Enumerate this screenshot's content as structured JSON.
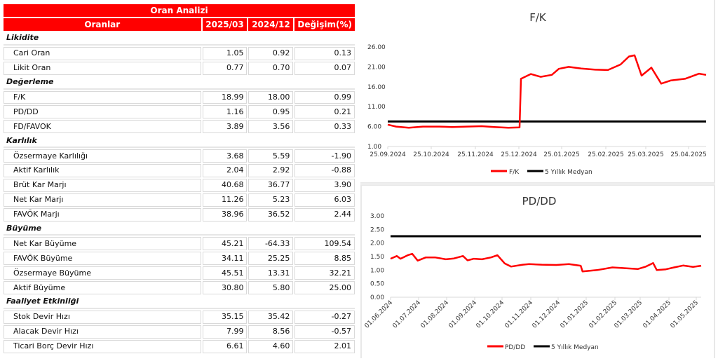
{
  "table": {
    "title": "Oran Analizi",
    "headers": [
      "Oranlar",
      "2025/03",
      "2024/12",
      "Değişim(%)"
    ],
    "sections": [
      {
        "name": "Likidite",
        "rows": [
          {
            "label": "Cari Oran",
            "v2025_03": "1.05",
            "v2024_12": "0.92",
            "change": "0.13"
          },
          {
            "label": "Likit Oran",
            "v2025_03": "0.77",
            "v2024_12": "0.70",
            "change": "0.07"
          }
        ]
      },
      {
        "name": "Değerleme",
        "rows": [
          {
            "label": "F/K",
            "v2025_03": "18.99",
            "v2024_12": "18.00",
            "change": "0.99"
          },
          {
            "label": "PD/DD",
            "v2025_03": "1.16",
            "v2024_12": "0.95",
            "change": "0.21"
          },
          {
            "label": "FD/FAVOK",
            "v2025_03": "3.89",
            "v2024_12": "3.56",
            "change": "0.33"
          }
        ]
      },
      {
        "name": "Karlılık",
        "rows": [
          {
            "label": "Özsermaye Karlılığı",
            "v2025_03": "3.68",
            "v2024_12": "5.59",
            "change": "-1.90"
          },
          {
            "label": "Aktif Karlılık",
            "v2025_03": "2.04",
            "v2024_12": "2.92",
            "change": "-0.88"
          },
          {
            "label": "Brüt Kar Marjı",
            "v2025_03": "40.68",
            "v2024_12": "36.77",
            "change": "3.90"
          },
          {
            "label": "Net Kar Marjı",
            "v2025_03": "11.26",
            "v2024_12": "5.23",
            "change": "6.03"
          },
          {
            "label": "FAVÖK Marjı",
            "v2025_03": "38.96",
            "v2024_12": "36.52",
            "change": "2.44"
          }
        ]
      },
      {
        "name": "Büyüme",
        "rows": [
          {
            "label": "Net Kar Büyüme",
            "v2025_03": "45.21",
            "v2024_12": "-64.33",
            "change": "109.54"
          },
          {
            "label": "FAVÖK Büyüme",
            "v2025_03": "34.11",
            "v2024_12": "25.25",
            "change": "8.85"
          },
          {
            "label": "Özsermaye Büyüme",
            "v2025_03": "45.51",
            "v2024_12": "13.31",
            "change": "32.21"
          },
          {
            "label": "Aktif Büyüme",
            "v2025_03": "30.80",
            "v2024_12": "5.80",
            "change": "25.00"
          }
        ]
      },
      {
        "name": "Faaliyet Etkinliği",
        "rows": [
          {
            "label": "Stok Devir Hızı",
            "v2025_03": "35.15",
            "v2024_12": "35.42",
            "change": "-0.27"
          },
          {
            "label": "Alacak Devir Hızı",
            "v2025_03": "7.99",
            "v2024_12": "8.56",
            "change": "-0.57"
          },
          {
            "label": "Ticari Borç Devir Hızı",
            "v2025_03": "6.61",
            "v2024_12": "4.60",
            "change": "2.01"
          }
        ]
      }
    ]
  },
  "colors": {
    "header_red": "#ff0000",
    "series_red": "#ff0000",
    "median_black": "#000000"
  },
  "chart_data": [
    {
      "type": "line",
      "title": "F/K",
      "xlabel": "",
      "ylabel": "",
      "ylim": [
        1,
        26
      ],
      "yticks": [
        "26.00",
        "21.00",
        "16.00",
        "11.00",
        "6.00",
        "1.00"
      ],
      "xticks": [
        "25.09.2024",
        "25.10.2024",
        "25.11.2024",
        "25.12.2024",
        "25.01.2025",
        "25.02.2025",
        "25.03.2025",
        "25.04.2025"
      ],
      "grid": false,
      "legend_position": "bottom",
      "legend": [
        "F/K",
        "5 Yıllık Medyan"
      ],
      "series": [
        {
          "name": "F/K",
          "color": "#ff0000",
          "x": [
            "25.09.2024",
            "01.10.2024",
            "10.10.2024",
            "20.10.2024",
            "01.11.2024",
            "10.11.2024",
            "20.11.2024",
            "01.12.2024",
            "10.12.2024",
            "20.12.2024",
            "28.12.2024",
            "29.12.2024",
            "05.01.2025",
            "12.01.2025",
            "20.01.2025",
            "25.01.2025",
            "01.02.2025",
            "10.02.2025",
            "20.02.2025",
            "01.03.2025",
            "10.03.2025",
            "16.03.2025",
            "20.03.2025",
            "25.03.2025",
            "01.04.2025",
            "08.04.2025",
            "15.04.2025",
            "25.04.2025",
            "05.05.2025",
            "10.05.2025"
          ],
          "values": [
            6.5,
            6.0,
            5.7,
            6.0,
            6.0,
            5.9,
            6.0,
            6.1,
            5.9,
            5.7,
            5.8,
            18.0,
            19.2,
            18.5,
            19.0,
            20.5,
            21.0,
            20.6,
            20.3,
            20.2,
            21.6,
            23.6,
            23.9,
            18.8,
            20.8,
            16.8,
            17.6,
            18.0,
            19.3,
            18.99
          ]
        },
        {
          "name": "5 Yıllık Medyan",
          "color": "#000000",
          "values_constant": 7.3
        }
      ]
    },
    {
      "type": "line",
      "title": "PD/DD",
      "xlabel": "",
      "ylabel": "",
      "ylim": [
        0,
        3
      ],
      "yticks": [
        "3.00",
        "2.50",
        "2.00",
        "1.50",
        "1.00",
        "0.50",
        "0.00"
      ],
      "xticks": [
        "01.06.2024",
        "01.07.2024",
        "01.08.2024",
        "01.09.2024",
        "01.10.2024",
        "01.11.2024",
        "01.12.2024",
        "01.01.2025",
        "01.02.2025",
        "01.03.2025",
        "01.04.2025",
        "01.05.2025"
      ],
      "grid": false,
      "legend_position": "bottom",
      "legend": [
        "PD/DD",
        "5 Yıllık Medyan"
      ],
      "series": [
        {
          "name": "PD/DD",
          "color": "#ff0000",
          "x": [
            "01.06.2024",
            "08.06.2024",
            "12.06.2024",
            "20.06.2024",
            "25.06.2024",
            "01.07.2024",
            "10.07.2024",
            "20.07.2024",
            "01.08.2024",
            "10.08.2024",
            "20.08.2024",
            "25.08.2024",
            "01.09.2024",
            "10.09.2024",
            "20.09.2024",
            "27.09.2024",
            "05.10.2024",
            "12.10.2024",
            "25.10.2024",
            "01.11.2024",
            "15.11.2024",
            "01.12.2024",
            "15.12.2024",
            "28.12.2024",
            "30.12.2024",
            "15.01.2025",
            "01.02.2025",
            "15.02.2025",
            "01.03.2025",
            "10.03.2025",
            "18.03.2025",
            "22.03.2025",
            "01.04.2025",
            "10.04.2025",
            "20.04.2025",
            "01.05.2025",
            "10.05.2025"
          ],
          "values": [
            1.42,
            1.52,
            1.42,
            1.55,
            1.6,
            1.35,
            1.47,
            1.47,
            1.4,
            1.43,
            1.52,
            1.36,
            1.42,
            1.4,
            1.47,
            1.55,
            1.25,
            1.13,
            1.2,
            1.22,
            1.2,
            1.19,
            1.22,
            1.16,
            0.95,
            1.0,
            1.1,
            1.07,
            1.04,
            1.13,
            1.26,
            1.0,
            1.03,
            1.1,
            1.17,
            1.12,
            1.16
          ]
        },
        {
          "name": "5 Yıllık Medyan",
          "color": "#000000",
          "values_constant": 2.25
        }
      ]
    }
  ]
}
